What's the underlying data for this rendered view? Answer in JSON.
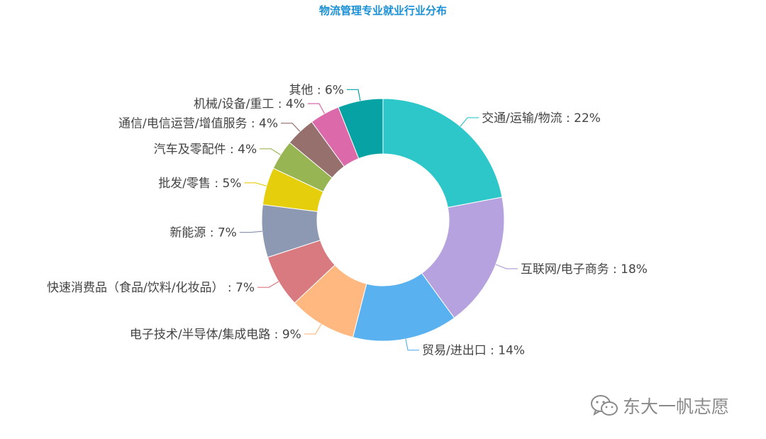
{
  "chart_data": {
    "type": "pie",
    "variant": "donut",
    "title": "物流管理专业就业行业分布",
    "unit": "%",
    "slices": [
      {
        "label": "交通/运输/物流",
        "value": 22,
        "color": "#2ec7c9"
      },
      {
        "label": "互联网/电子商务",
        "value": 18,
        "color": "#b6a2de"
      },
      {
        "label": "贸易/进出口",
        "value": 14,
        "color": "#5ab1ef"
      },
      {
        "label": "电子技术/半导体/集成电路",
        "value": 9,
        "color": "#ffb980"
      },
      {
        "label": "快速消费品（食品/饮料/化妆品）",
        "value": 7,
        "color": "#d87a80"
      },
      {
        "label": "新能源",
        "value": 7,
        "color": "#8d98b3"
      },
      {
        "label": "批发/零售",
        "value": 5,
        "color": "#e5cf0d"
      },
      {
        "label": "汽车及零配件",
        "value": 4,
        "color": "#97b552"
      },
      {
        "label": "通信/电信运营/增值服务",
        "value": 4,
        "color": "#95706d"
      },
      {
        "label": "机械/设备/重工",
        "value": 4,
        "color": "#dc69aa"
      },
      {
        "label": "其他",
        "value": 6,
        "color": "#07a2a4"
      }
    ]
  },
  "watermark": {
    "text": "东大一帆志愿",
    "icon": "wechat-icon"
  }
}
